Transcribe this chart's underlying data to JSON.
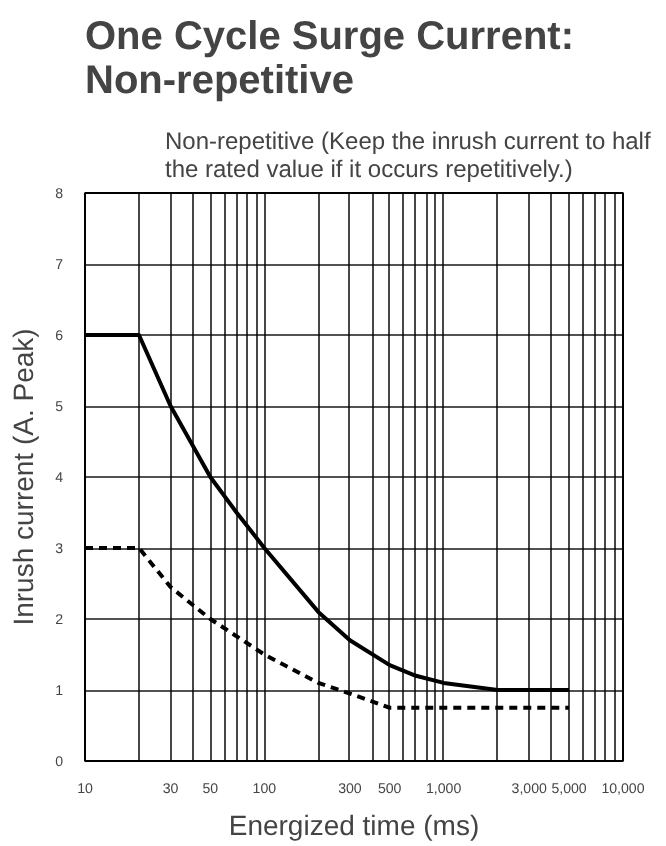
{
  "chart_data": {
    "type": "line",
    "title": "One Cycle Surge Current: Non-repetitive",
    "subtitle": "Non-repetitive (Keep the inrush current to half the rated value if it occurs repetitively.)",
    "xlabel": "Energized time (ms)",
    "ylabel": "Inrush current (A. Peak)",
    "log": "x",
    "series": [
      {
        "color": "#000000",
        "line_style": "solid",
        "x": [
          10,
          20,
          30,
          50,
          70,
          100,
          200,
          300,
          500,
          700,
          1000,
          2000,
          5000
        ],
        "values": [
          6,
          6,
          5,
          4,
          3.5,
          3,
          2.1,
          1.7,
          1.35,
          1.2,
          1.1,
          1.0,
          1.0
        ]
      },
      {
        "color": "#000000",
        "line_style": "dashed",
        "x": [
          10,
          20,
          30,
          50,
          100,
          200,
          300,
          500,
          1000,
          5000
        ],
        "values": [
          3,
          3,
          2.45,
          2.0,
          1.5,
          1.1,
          0.95,
          0.75,
          0.75,
          0.75
        ]
      }
    ],
    "xlim": [
      10,
      10000
    ],
    "ylim": [
      0,
      8
    ],
    "xticks": [
      10,
      {
        "value": 20,
        "label": null
      },
      30,
      {
        "value": 40,
        "label": null
      },
      50,
      {
        "value": 60,
        "label": null
      },
      {
        "value": 70,
        "label": null
      },
      {
        "value": 80,
        "label": null
      },
      {
        "value": 90,
        "label": null
      },
      100,
      {
        "value": 200,
        "label": null
      },
      300,
      {
        "value": 400,
        "label": null
      },
      500,
      {
        "value": 600,
        "label": null
      },
      {
        "value": 700,
        "label": null
      },
      {
        "value": 800,
        "label": null
      },
      {
        "value": 900,
        "label": null
      },
      {
        "value": 1000,
        "label": "1,000"
      },
      {
        "value": 2000,
        "label": null
      },
      {
        "value": 3000,
        "label": "3,000"
      },
      {
        "value": 4000,
        "label": null
      },
      {
        "value": 5000,
        "label": "5,000"
      },
      {
        "value": 6000,
        "label": null
      },
      {
        "value": 7000,
        "label": null
      },
      {
        "value": 8000,
        "label": null
      },
      {
        "value": 9000,
        "label": null
      },
      {
        "value": 10000,
        "label": "10,000"
      }
    ],
    "yticks": [
      0,
      1,
      2,
      3,
      4,
      5,
      6,
      7,
      8
    ],
    "grid": true
  }
}
